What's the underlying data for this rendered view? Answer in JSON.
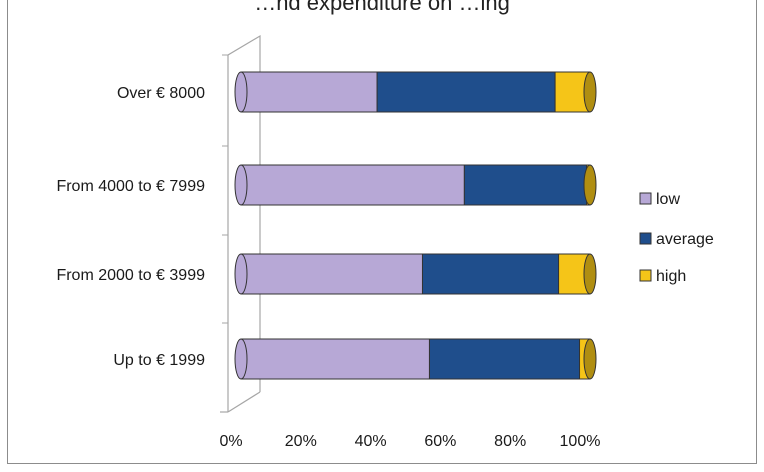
{
  "chart_data": {
    "type": "bar",
    "orientation": "horizontal",
    "stacked": "percent",
    "title": "…nd expenditure on …ing",
    "categories": [
      "Up to € 1999",
      "From 2000 to € 3999",
      "From 4000 to € 7999",
      "Over € 8000"
    ],
    "series": [
      {
        "name": "low",
        "values": [
          54,
          52,
          64,
          39
        ],
        "color": "#b7a8d6"
      },
      {
        "name": "average",
        "values": [
          43,
          39,
          35,
          51
        ],
        "color": "#1f4e8c"
      },
      {
        "name": "high",
        "values": [
          3,
          9,
          1,
          10
        ],
        "color": "#f5c518"
      }
    ],
    "x_ticks": [
      "0%",
      "20%",
      "40%",
      "60%",
      "80%",
      "100%"
    ],
    "xlim": [
      0,
      100
    ],
    "legend_position": "right",
    "grid": false
  }
}
